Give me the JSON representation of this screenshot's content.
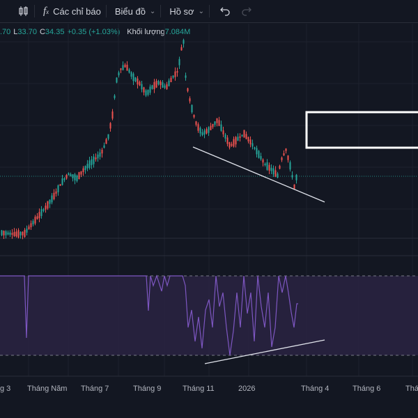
{
  "toolbar": {
    "indicators_label": "Các chỉ báo",
    "chart_type_label": "Biểu đồ",
    "profile_label": "Hồ sơ"
  },
  "ohlc": {
    "o_value": ".70",
    "l_key": "L",
    "l_value": "33.70",
    "c_key": "C",
    "c_value": "34.35",
    "change": "+0.35 (+1.03%)",
    "volume_label": "Khối lượng",
    "volume_value": "7.084M"
  },
  "x_axis": {
    "labels": [
      "g 3",
      "Tháng Năm",
      "Tháng 7",
      "Tháng 9",
      "Tháng 11",
      "2026",
      "Tháng 4",
      "Tháng 6",
      "Tháng"
    ]
  },
  "colors": {
    "background": "#131722",
    "up": "#26a69a",
    "down": "#ef5350",
    "rsi_line": "#7e57c2",
    "rsi_band": "#2a2342"
  }
}
